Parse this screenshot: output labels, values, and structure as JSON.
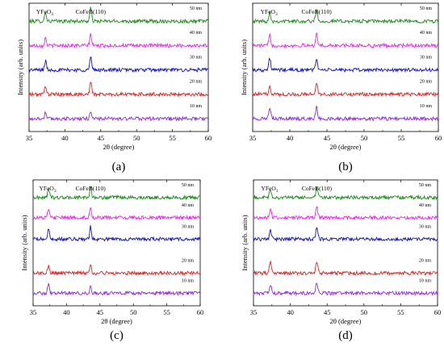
{
  "chart_data": [
    {
      "type": "line",
      "panel_label": "(a)",
      "xlabel": "2θ (degree)",
      "ylabel": "Intensity (arb. units)",
      "xlim": [
        35,
        60
      ],
      "xticks": [
        35,
        40,
        45,
        50,
        55,
        60
      ],
      "peak_labels": [
        {
          "text": "YFeO",
          "sub": "3",
          "x": 37.3
        },
        {
          "text": "CoFeB(110)",
          "x": 43.6
        }
      ],
      "series": [
        {
          "name": "50 nm",
          "color": "#1a8a1a",
          "baseline": 0.86,
          "peaks": [
            {
              "x": 37.3,
              "h": 0.07
            },
            {
              "x": 43.6,
              "h": 0.1
            }
          ]
        },
        {
          "name": "40 nm",
          "color": "#ee22ee",
          "baseline": 0.67,
          "peaks": [
            {
              "x": 37.3,
              "h": 0.06
            },
            {
              "x": 43.6,
              "h": 0.09
            }
          ]
        },
        {
          "name": "30 nm",
          "color": "#1010cc",
          "baseline": 0.48,
          "peaks": [
            {
              "x": 37.3,
              "h": 0.07
            },
            {
              "x": 43.6,
              "h": 0.1
            }
          ]
        },
        {
          "name": "20 nm",
          "color": "#e02020",
          "baseline": 0.29,
          "peaks": [
            {
              "x": 37.3,
              "h": 0.07
            },
            {
              "x": 43.6,
              "h": 0.1
            }
          ]
        },
        {
          "name": "10 nm",
          "color": "#8a2be2",
          "baseline": 0.1,
          "peaks": [
            {
              "x": 37.3,
              "h": 0.05
            },
            {
              "x": 43.6,
              "h": 0.06
            }
          ]
        }
      ]
    },
    {
      "type": "line",
      "panel_label": "(b)",
      "xlabel": "2θ (degree)",
      "ylabel": "Intensity (arb. units)",
      "xlim": [
        35,
        60
      ],
      "xticks": [
        35,
        40,
        45,
        50,
        55,
        60
      ],
      "peak_labels": [
        {
          "text": "YFeO",
          "sub": "3",
          "x": 37.3
        },
        {
          "text": "CoFeB(110)",
          "x": 43.6
        }
      ],
      "series": [
        {
          "name": "50 nm",
          "color": "#1a8a1a",
          "baseline": 0.86,
          "peaks": [
            {
              "x": 37.3,
              "h": 0.07
            },
            {
              "x": 43.6,
              "h": 0.09
            }
          ]
        },
        {
          "name": "40 nm",
          "color": "#ee22ee",
          "baseline": 0.67,
          "peaks": [
            {
              "x": 37.3,
              "h": 0.08
            },
            {
              "x": 43.6,
              "h": 0.1
            }
          ]
        },
        {
          "name": "30 nm",
          "color": "#1010cc",
          "baseline": 0.48,
          "peaks": [
            {
              "x": 37.3,
              "h": 0.09
            },
            {
              "x": 43.6,
              "h": 0.09
            }
          ]
        },
        {
          "name": "20 nm",
          "color": "#e02020",
          "baseline": 0.29,
          "peaks": [
            {
              "x": 37.3,
              "h": 0.07
            },
            {
              "x": 43.6,
              "h": 0.1
            }
          ]
        },
        {
          "name": "10 nm",
          "color": "#8a2be2",
          "baseline": 0.1,
          "peaks": [
            {
              "x": 37.3,
              "h": 0.08
            },
            {
              "x": 43.6,
              "h": 0.09
            }
          ]
        }
      ]
    },
    {
      "type": "line",
      "panel_label": "(c)",
      "xlabel": "2θ (degree)",
      "ylabel": "Intensity (arb. units)",
      "xlim": [
        35,
        60
      ],
      "xticks": [
        35,
        40,
        45,
        50,
        55,
        60
      ],
      "peak_labels": [
        {
          "text": "YFeO",
          "sub": "3",
          "x": 37.3
        },
        {
          "text": "CoFeB(110)",
          "x": 43.6
        }
      ],
      "series": [
        {
          "name": "50 nm",
          "color": "#1a8a1a",
          "baseline": 0.86,
          "peaks": [
            {
              "x": 37.3,
              "h": 0.08
            },
            {
              "x": 43.6,
              "h": 0.09
            }
          ]
        },
        {
          "name": "40 nm",
          "color": "#ee22ee",
          "baseline": 0.7,
          "peaks": [
            {
              "x": 37.3,
              "h": 0.07
            },
            {
              "x": 43.6,
              "h": 0.09
            }
          ]
        },
        {
          "name": "30 nm",
          "color": "#1010cc",
          "baseline": 0.53,
          "peaks": [
            {
              "x": 37.3,
              "h": 0.08
            },
            {
              "x": 43.6,
              "h": 0.1
            }
          ]
        },
        {
          "name": "20 nm",
          "color": "#e02020",
          "baseline": 0.26,
          "peaks": [
            {
              "x": 37.3,
              "h": 0.06
            },
            {
              "x": 43.6,
              "h": 0.06
            }
          ]
        },
        {
          "name": "10 nm",
          "color": "#8a2be2",
          "baseline": 0.1,
          "peaks": [
            {
              "x": 37.3,
              "h": 0.07
            },
            {
              "x": 43.6,
              "h": 0.06
            }
          ]
        }
      ]
    },
    {
      "type": "line",
      "panel_label": "(d)",
      "xlabel": "2θ (degree)",
      "ylabel": "Intensity (arb. units)",
      "xlim": [
        35,
        60
      ],
      "xticks": [
        35,
        40,
        45,
        50,
        55,
        60
      ],
      "peak_labels": [
        {
          "text": "YFeO",
          "sub": "3",
          "x": 37.3
        },
        {
          "text": "CoFeB(110)",
          "x": 43.6
        }
      ],
      "series": [
        {
          "name": "50 nm",
          "color": "#1a8a1a",
          "baseline": 0.86,
          "peaks": [
            {
              "x": 37.3,
              "h": 0.06
            },
            {
              "x": 43.6,
              "h": 0.07
            }
          ]
        },
        {
          "name": "40 nm",
          "color": "#ee22ee",
          "baseline": 0.7,
          "peaks": [
            {
              "x": 37.3,
              "h": 0.07
            },
            {
              "x": 43.6,
              "h": 0.08
            }
          ]
        },
        {
          "name": "30 nm",
          "color": "#1010cc",
          "baseline": 0.53,
          "peaks": [
            {
              "x": 37.3,
              "h": 0.07
            },
            {
              "x": 43.6,
              "h": 0.09
            }
          ]
        },
        {
          "name": "20 nm",
          "color": "#e02020",
          "baseline": 0.26,
          "peaks": [
            {
              "x": 37.3,
              "h": 0.08
            },
            {
              "x": 43.6,
              "h": 0.09
            }
          ]
        },
        {
          "name": "10 nm",
          "color": "#8a2be2",
          "baseline": 0.1,
          "peaks": [
            {
              "x": 37.3,
              "h": 0.07
            },
            {
              "x": 43.6,
              "h": 0.09
            }
          ]
        }
      ]
    }
  ]
}
